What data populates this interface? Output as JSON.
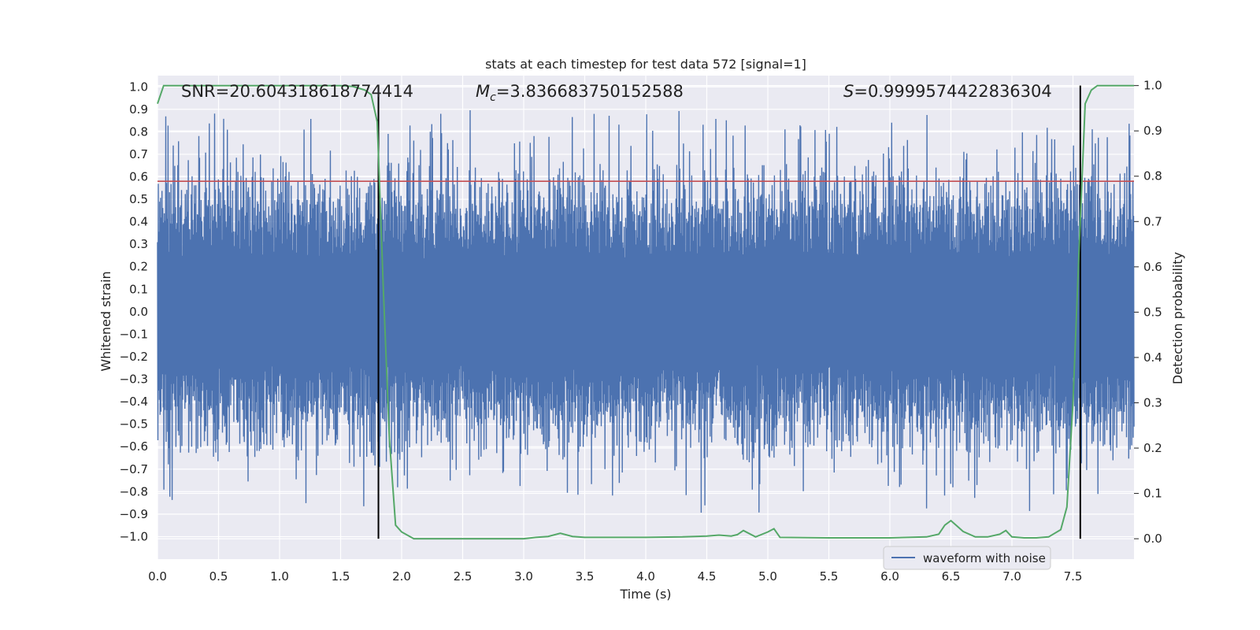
{
  "chart_data": {
    "type": "line",
    "title": "stats at each timestep for test data 572 [signal=1]",
    "xlabel": "Time (s)",
    "ylabel_left": "Whitened strain",
    "ylabel_right": "Detection probability",
    "xlim": [
      0.0,
      8.0
    ],
    "ylim_left": [
      -1.1,
      1.05
    ],
    "ylim_right": [
      -0.045,
      1.022
    ],
    "x_ticks": [
      "0.0",
      "0.5",
      "1.0",
      "1.5",
      "2.0",
      "2.5",
      "3.0",
      "3.5",
      "4.0",
      "4.5",
      "5.0",
      "5.5",
      "6.0",
      "6.5",
      "7.0",
      "7.5"
    ],
    "y_ticks_left": [
      "1.0",
      "0.9",
      "0.8",
      "0.7",
      "0.6",
      "0.5",
      "0.4",
      "0.3",
      "0.2",
      "0.1",
      "0.0",
      "-0.1",
      "-0.2",
      "-0.3",
      "-0.4",
      "-0.5",
      "-0.6",
      "-0.7",
      "-0.8",
      "-0.9",
      "-1.0"
    ],
    "y_ticks_right": [
      "1.0",
      "0.9",
      "0.8",
      "0.7",
      "0.6",
      "0.5",
      "0.4",
      "0.3",
      "0.2",
      "0.1",
      "0.0"
    ],
    "annotations": {
      "snr": "SNR=20.604318618774414",
      "mc_symbol": "M",
      "mc_sub": "c",
      "mc_value": "=3.836683750152588",
      "s_symbol": "S",
      "s_value": "=0.9999574422836304"
    },
    "threshold": {
      "value": 0.58,
      "color": "#c44e52"
    },
    "vlines": [
      1.81,
      7.56
    ],
    "series": [
      {
        "name": "waveform with noise",
        "axis": "left",
        "color": "#4c72b0",
        "style": "dense noisy signal",
        "approx_min": -0.99,
        "approx_max": 0.96,
        "typical_band": [
          -0.45,
          0.6
        ]
      },
      {
        "name": "detection probability",
        "axis": "right",
        "color": "#55a868",
        "x": [
          0.0,
          0.05,
          0.1,
          0.5,
          1.0,
          1.5,
          1.6,
          1.7,
          1.75,
          1.8,
          1.85,
          1.9,
          1.95,
          2.0,
          2.1,
          2.2,
          2.5,
          3.0,
          3.1,
          3.2,
          3.3,
          3.4,
          3.5,
          4.0,
          4.3,
          4.5,
          4.6,
          4.7,
          4.75,
          4.8,
          4.9,
          5.0,
          5.05,
          5.1,
          5.5,
          6.0,
          6.3,
          6.4,
          6.45,
          6.5,
          6.55,
          6.6,
          6.7,
          6.8,
          6.9,
          6.95,
          7.0,
          7.1,
          7.2,
          7.3,
          7.4,
          7.45,
          7.5,
          7.55,
          7.6,
          7.65,
          7.7,
          7.75,
          8.0
        ],
        "y": [
          0.96,
          1.0,
          1.0,
          1.0,
          1.0,
          1.0,
          0.998,
          0.99,
          0.98,
          0.92,
          0.55,
          0.22,
          0.03,
          0.015,
          0.0,
          0.0,
          0.0,
          0.0,
          0.003,
          0.005,
          0.012,
          0.005,
          0.003,
          0.003,
          0.004,
          0.006,
          0.008,
          0.006,
          0.009,
          0.018,
          0.004,
          0.015,
          0.022,
          0.003,
          0.002,
          0.002,
          0.004,
          0.01,
          0.03,
          0.04,
          0.028,
          0.016,
          0.004,
          0.004,
          0.01,
          0.018,
          0.004,
          0.002,
          0.002,
          0.004,
          0.02,
          0.07,
          0.3,
          0.64,
          0.96,
          0.99,
          1.0,
          1.0,
          1.0
        ]
      }
    ],
    "legend": {
      "entries": [
        "waveform with noise"
      ],
      "placement": "lower-right"
    }
  },
  "colors": {
    "background": "#ffffff",
    "plot_background": "#eaeaf2",
    "grid": "#ffffff",
    "vline": "#000000"
  }
}
